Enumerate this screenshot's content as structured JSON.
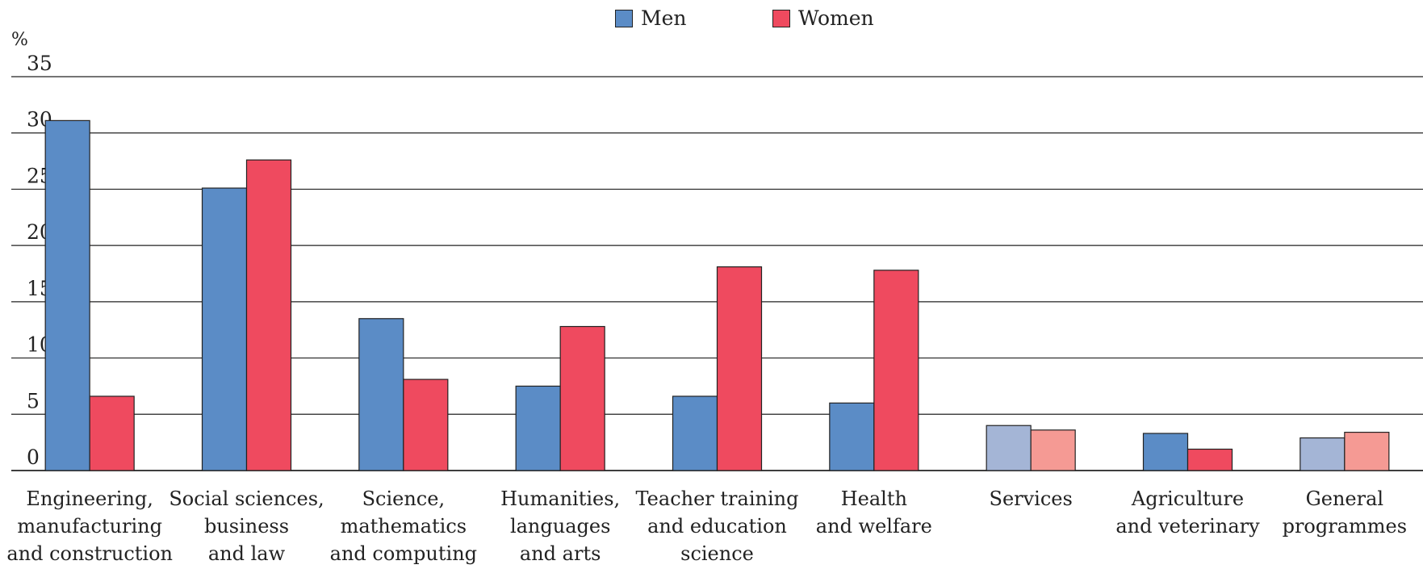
{
  "chart_data": {
    "type": "bar",
    "ylabel": "%",
    "ylim": [
      0,
      35
    ],
    "yticks": [
      0,
      5,
      10,
      15,
      20,
      25,
      30,
      35
    ],
    "grid": true,
    "legend_position": "top-center",
    "categories": [
      [
        "Engineering,",
        "manufacturing",
        "and construction"
      ],
      [
        "Social sciences,",
        "business",
        "and law"
      ],
      [
        "Science,",
        "mathematics",
        "and computing"
      ],
      [
        "Humanities,",
        "languages",
        "and arts"
      ],
      [
        "Teacher training",
        "and education",
        "science"
      ],
      [
        "Health",
        "and welfare"
      ],
      [
        "Services"
      ],
      [
        "Agriculture",
        "and veterinary"
      ],
      [
        "General",
        "programmes"
      ]
    ],
    "series": [
      {
        "name": "Men",
        "color": "#5b8cc6",
        "light_color": "#a4b5d6",
        "values": [
          31.1,
          25.1,
          13.5,
          7.5,
          6.6,
          6.0,
          4.0,
          3.3,
          2.9
        ]
      },
      {
        "name": "Women",
        "color": "#ef4a5f",
        "light_color": "#f59a94",
        "values": [
          6.6,
          27.6,
          8.1,
          12.8,
          18.1,
          17.8,
          3.6,
          1.9,
          3.4
        ]
      }
    ],
    "light_categories": [
      6,
      8
    ]
  }
}
